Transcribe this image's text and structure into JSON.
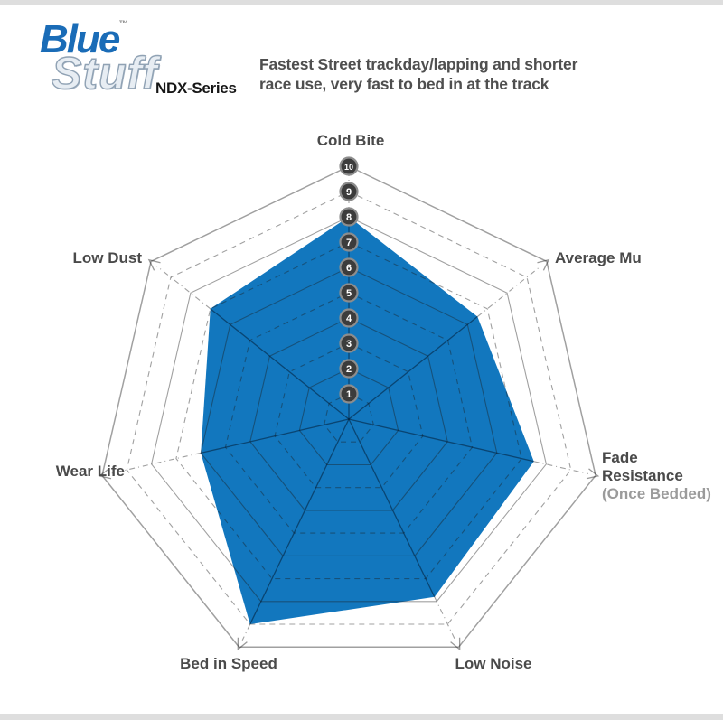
{
  "brand": {
    "name_primary": "Blue",
    "trademark": "™",
    "name_secondary": "Stuff",
    "series": "NDX-Series"
  },
  "header": {
    "description_line1": "Fastest Street trackday/lapping and shorter",
    "description_line2": "race use, very fast to bed in at the track"
  },
  "chart_data": {
    "type": "radar",
    "title": "EBC Bluestuff NDX-Series brake pad performance radar",
    "categories": [
      "Cold Bite",
      "Average Mu",
      "Fade Resistance (Once Bedded)",
      "Low Noise",
      "Bed in Speed",
      "Wear Life",
      "Low Dust"
    ],
    "values": [
      8,
      6.5,
      7.5,
      7.8,
      9,
      6,
      7
    ],
    "scale_min": 0,
    "scale_max": 10,
    "tick_labels": [
      "1",
      "2",
      "3",
      "4",
      "5",
      "6",
      "7",
      "8",
      "9",
      "10"
    ],
    "grid": "concentric heptagon rings at each unit; even rings solid, odd rings dashed; radial axes with outward arrowheads",
    "legend": "none",
    "axis_label_lines": [
      [
        "Cold Bite"
      ],
      [
        "Average Mu"
      ],
      [
        "Fade",
        "Resistance",
        "(Once Bedded)"
      ],
      [
        "Low Noise"
      ],
      [
        "Bed in Speed"
      ],
      [
        "Wear Life"
      ],
      [
        "Low Dust"
      ]
    ],
    "muted_label": "(Once Bedded)"
  },
  "colors": {
    "series_fill": "#1277be",
    "label_text": "#4a4a4a",
    "muted_text": "#9b9b9b",
    "badge_fill": "#3c3c3c",
    "badge_ring": "#8d8d8d",
    "badge_text": "#ffffff",
    "grid_overlay": "#1c1c1c",
    "spoke_dark": "#001428",
    "brand_blue": "#1a6cb7"
  }
}
